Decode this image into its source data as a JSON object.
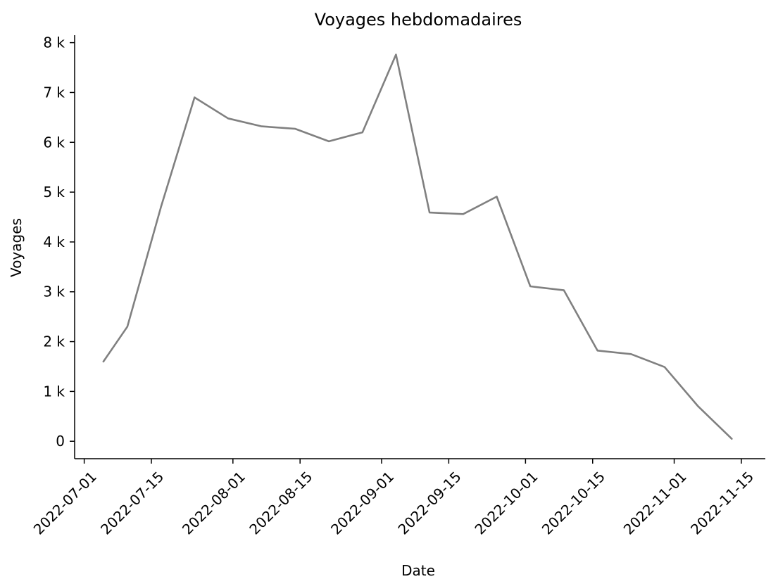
{
  "chart_data": {
    "type": "line",
    "title": "Voyages hebdomadaires",
    "xlabel": "Date",
    "ylabel": "Voyages",
    "x_ticks": [
      "2022-07-01",
      "2022-07-15",
      "2022-08-01",
      "2022-08-15",
      "2022-09-01",
      "2022-09-15",
      "2022-10-01",
      "2022-10-15",
      "2022-11-01",
      "2022-11-15"
    ],
    "y_ticks": [
      {
        "value": 0,
        "label": "0"
      },
      {
        "value": 1000,
        "label": "1 k"
      },
      {
        "value": 2000,
        "label": "2 k"
      },
      {
        "value": 3000,
        "label": "3 k"
      },
      {
        "value": 4000,
        "label": "4 k"
      },
      {
        "value": 5000,
        "label": "5 k"
      },
      {
        "value": 6000,
        "label": "6 k"
      },
      {
        "value": 7000,
        "label": "7 k"
      },
      {
        "value": 8000,
        "label": "8 k"
      }
    ],
    "xlim": [
      "2022-06-29",
      "2022-11-20"
    ],
    "ylim": [
      -350,
      8150
    ],
    "grid": false,
    "colors": {
      "line": "#808080"
    },
    "series": [
      {
        "x": [
          "2022-07-05",
          "2022-07-10",
          "2022-07-17",
          "2022-07-24",
          "2022-07-31",
          "2022-08-07",
          "2022-08-14",
          "2022-08-21",
          "2022-08-28",
          "2022-09-04",
          "2022-09-11",
          "2022-09-18",
          "2022-09-25",
          "2022-10-02",
          "2022-10-09",
          "2022-10-16",
          "2022-10-23",
          "2022-10-30",
          "2022-11-06",
          "2022-11-13"
        ],
        "values": [
          1600,
          2300,
          4700,
          6900,
          6480,
          6320,
          6270,
          6020,
          6200,
          7760,
          4590,
          4560,
          4910,
          3110,
          3030,
          1820,
          1750,
          1490,
          700,
          50
        ]
      }
    ]
  }
}
